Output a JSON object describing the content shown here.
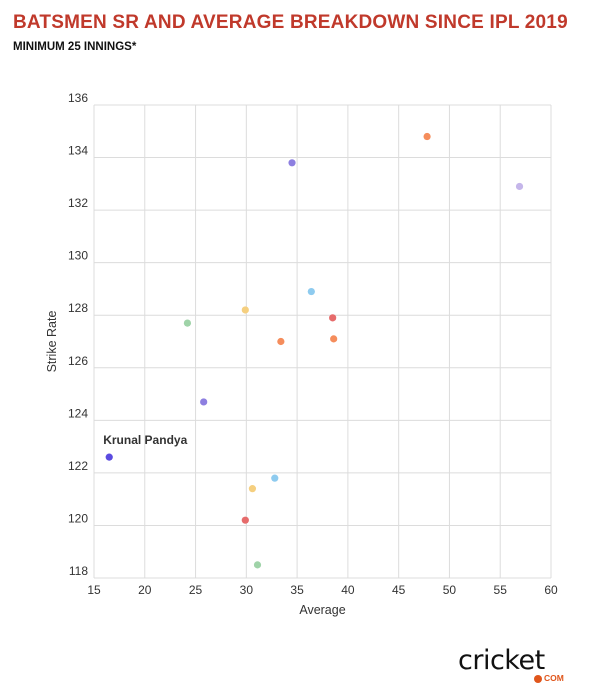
{
  "header": {
    "title": "BATSMEN SR AND AVERAGE BREAKDOWN SINCE IPL 2019",
    "subtitle": "MINIMUM 25 INNINGS*"
  },
  "logo": {
    "main": "cricket",
    "sub": "COM"
  },
  "chart_data": {
    "type": "scatter",
    "xlabel": "Average",
    "ylabel": "Strike Rate",
    "xlim": [
      15,
      60
    ],
    "ylim": [
      118,
      136
    ],
    "xticks": [
      15,
      20,
      25,
      30,
      35,
      40,
      45,
      50,
      55,
      60
    ],
    "yticks": [
      118,
      120,
      122,
      124,
      126,
      128,
      130,
      132,
      134,
      136
    ],
    "grid": true,
    "points": [
      {
        "x": 16.5,
        "y": 122.6,
        "color": "#5b4be0",
        "label": "Krunal Pandya"
      },
      {
        "x": 24.2,
        "y": 127.7,
        "color": "#9fd3a8"
      },
      {
        "x": 25.8,
        "y": 124.7,
        "color": "#8d7fe0"
      },
      {
        "x": 29.9,
        "y": 128.2,
        "color": "#f5cf7f"
      },
      {
        "x": 29.9,
        "y": 120.2,
        "color": "#e66b6b"
      },
      {
        "x": 30.6,
        "y": 121.4,
        "color": "#f5cf7f"
      },
      {
        "x": 31.1,
        "y": 118.5,
        "color": "#9fd3a8"
      },
      {
        "x": 32.8,
        "y": 121.8,
        "color": "#8ecbef"
      },
      {
        "x": 33.4,
        "y": 127.0,
        "color": "#f58d5c"
      },
      {
        "x": 34.5,
        "y": 133.8,
        "color": "#8d7fe0"
      },
      {
        "x": 36.4,
        "y": 128.9,
        "color": "#8ecbef"
      },
      {
        "x": 38.5,
        "y": 127.9,
        "color": "#e66b6b"
      },
      {
        "x": 38.6,
        "y": 127.1,
        "color": "#f58d5c"
      },
      {
        "x": 47.8,
        "y": 134.8,
        "color": "#f58d5c"
      },
      {
        "x": 56.9,
        "y": 132.9,
        "color": "#c5b6ea"
      }
    ]
  }
}
